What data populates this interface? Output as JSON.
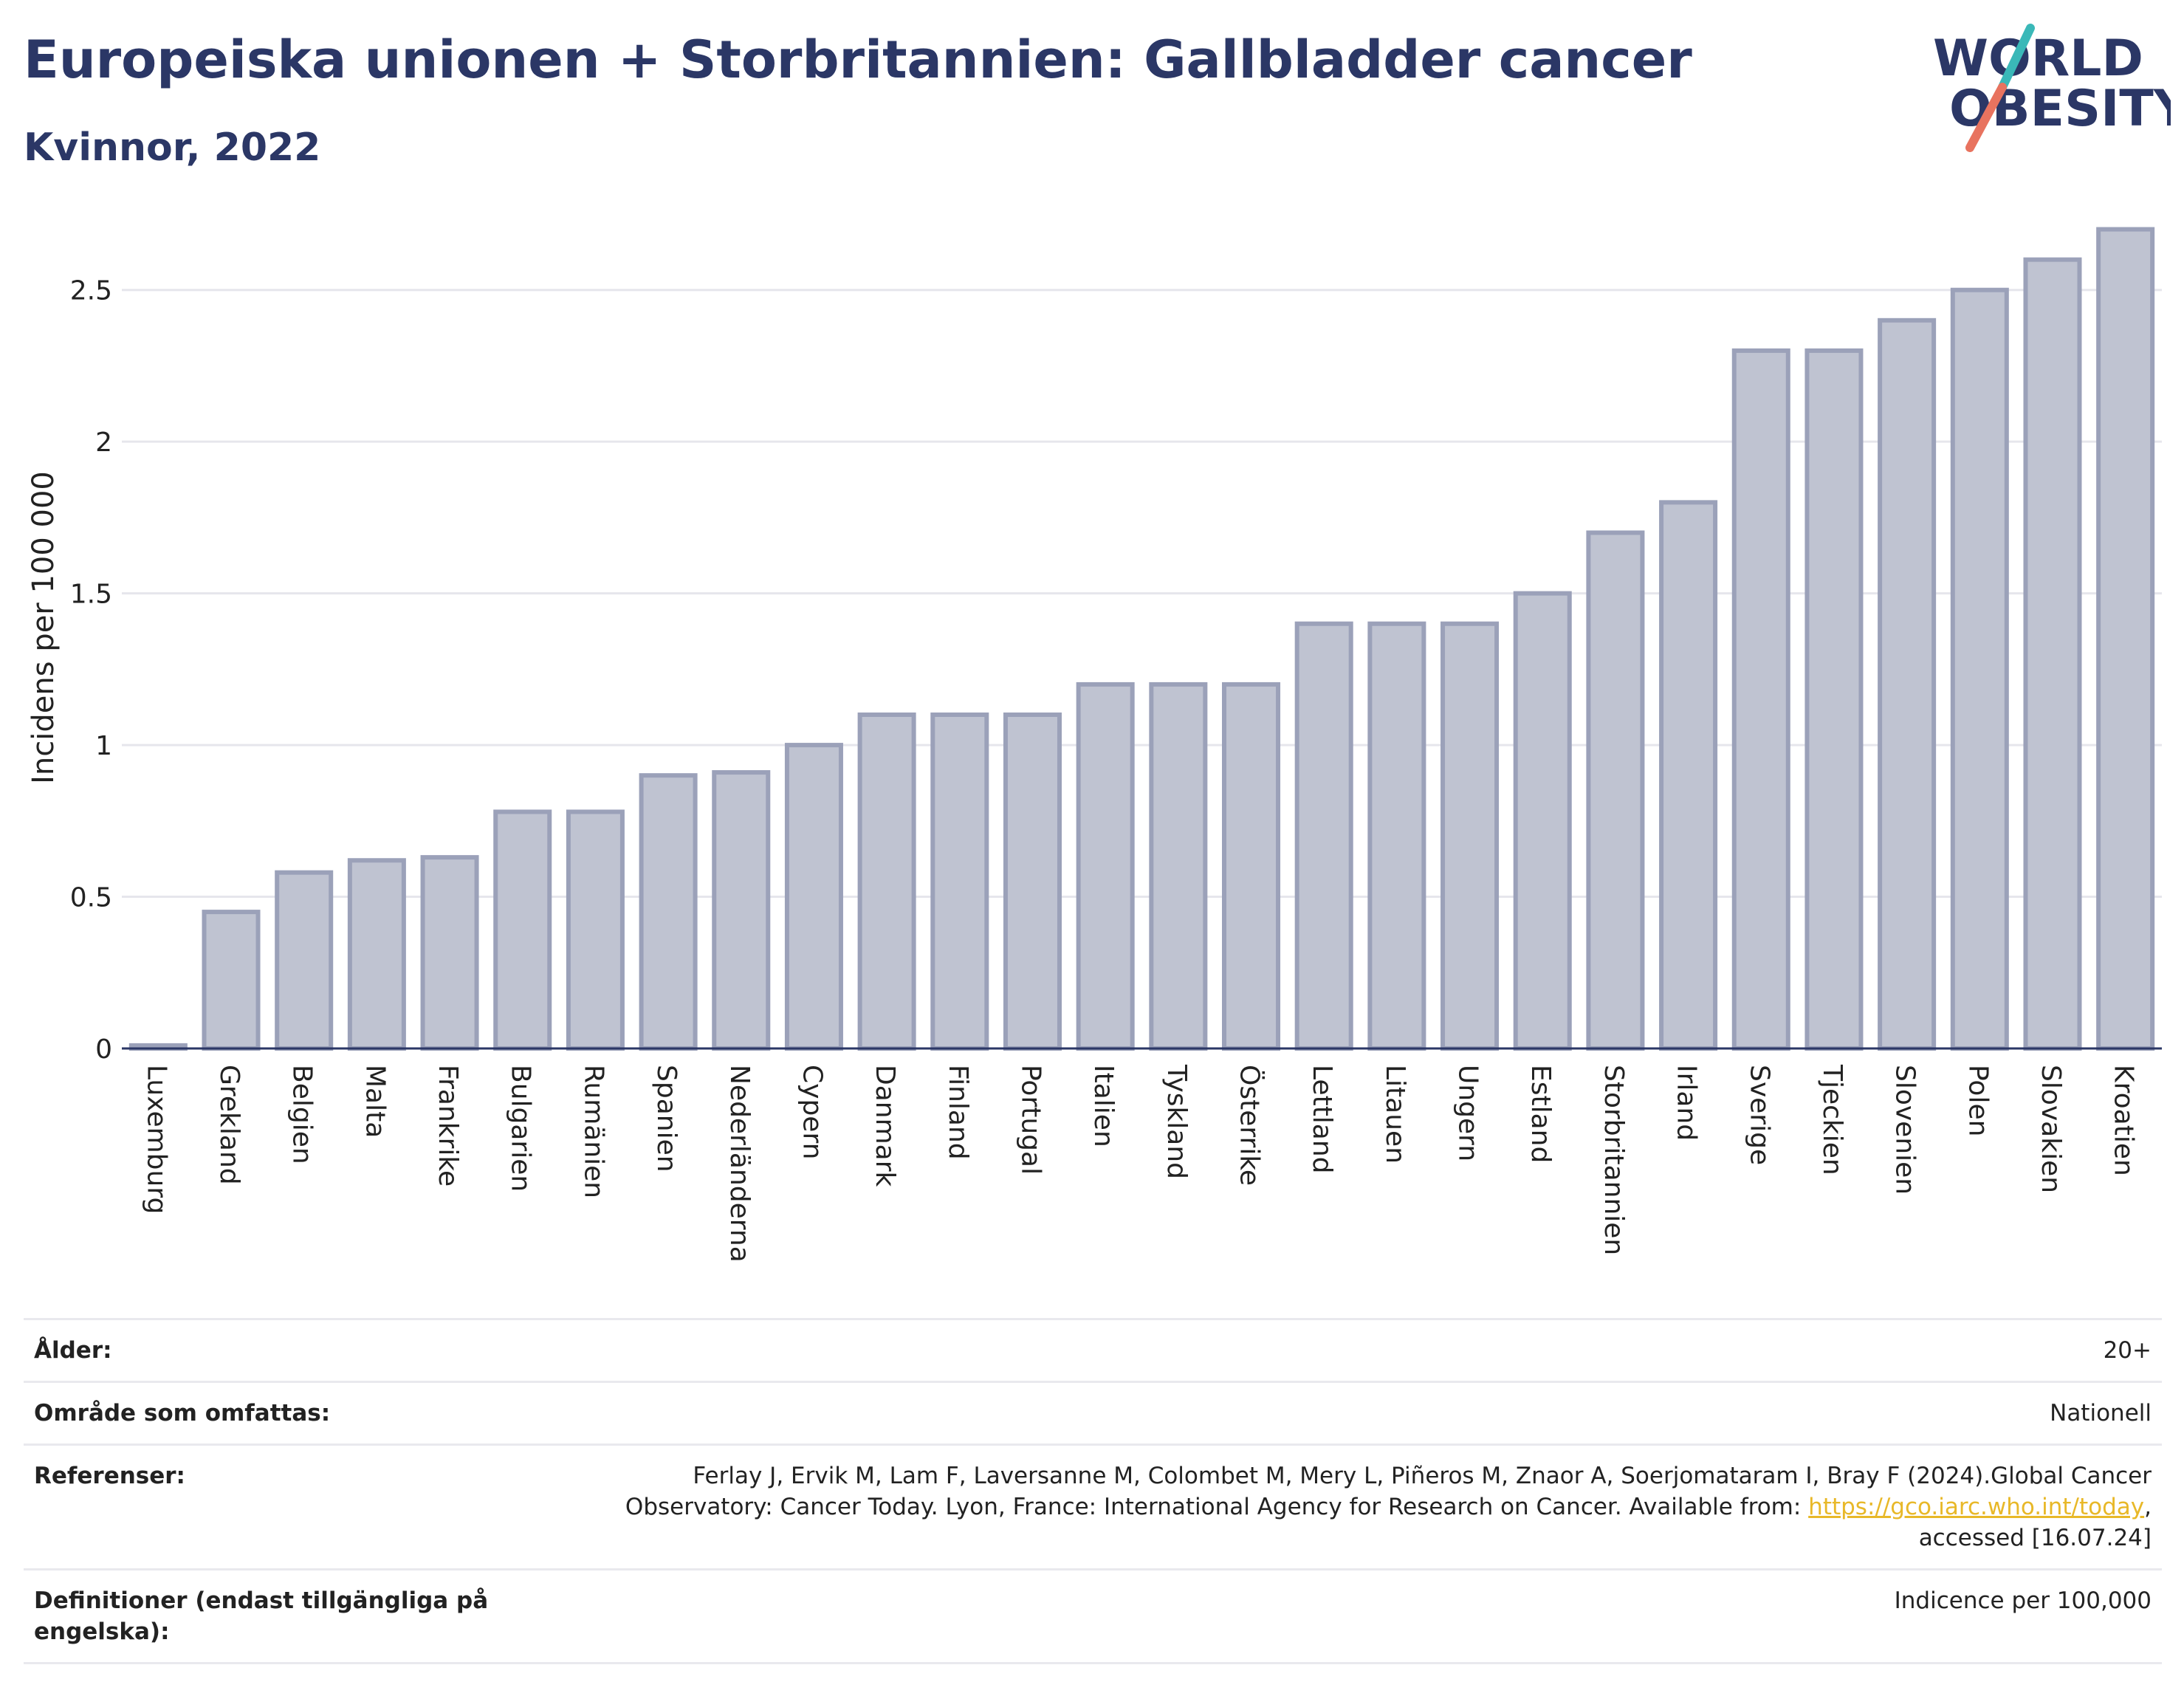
{
  "header": {
    "title": "Europeiska unionen + Storbritannien: Gallbladder cancer",
    "subtitle": "Kvinnor, 2022"
  },
  "logo": {
    "line1": "WORLD",
    "line2": "OBESITY",
    "icon": "world-obesity-logo"
  },
  "colors": {
    "bar_fill": "#bfc3d1",
    "bar_stroke": "#9ba1b9",
    "title": "#2b3766",
    "grid": "#e6e6ec",
    "link": "#e8b828",
    "logo_teal": "#3ab8b8",
    "logo_coral": "#e8735f"
  },
  "chart_data": {
    "type": "bar",
    "ylabel": "Incidens per 100 000",
    "ylim": [
      0,
      2.75
    ],
    "yticks": [
      0,
      0.5,
      1,
      1.5,
      2,
      2.5
    ],
    "ytick_labels": [
      "0",
      "0.5",
      "1",
      "1.5",
      "2",
      "2.5"
    ],
    "grid": true,
    "categories": [
      "Luxemburg",
      "Grekland",
      "Belgien",
      "Malta",
      "Frankrike",
      "Bulgarien",
      "Rumänien",
      "Spanien",
      "Nederländerna",
      "Cypern",
      "Danmark",
      "Finland",
      "Portugal",
      "Italien",
      "Tyskland",
      "Österrike",
      "Lettland",
      "Litauen",
      "Ungern",
      "Estland",
      "Storbritannien",
      "Irland",
      "Sverige",
      "Tjeckien",
      "Slovenien",
      "Polen",
      "Slovakien",
      "Kroatien"
    ],
    "values": [
      0.01,
      0.45,
      0.58,
      0.62,
      0.63,
      0.78,
      0.78,
      0.9,
      0.91,
      1.0,
      1.1,
      1.1,
      1.1,
      1.2,
      1.2,
      1.2,
      1.4,
      1.4,
      1.4,
      1.5,
      1.7,
      1.8,
      2.3,
      2.3,
      2.4,
      2.5,
      2.6,
      2.7
    ]
  },
  "info": {
    "age_label": "Ålder:",
    "age_value": "20+",
    "area_label": "Område som omfattas:",
    "area_value": "Nationell",
    "ref_label": "Referenser:",
    "ref_text_1": "Ferlay J, Ervik M, Lam F, Laversanne M, Colombet M, Mery L, Piñeros M, Znaor A, Soerjomataram I, Bray F (2024).Global Cancer Observatory: Cancer Today. Lyon, France: International Agency for Research on Cancer. Available from: ",
    "ref_link": "https://gco.iarc.who.int/today",
    "ref_text_2": ", accessed [16.07.24]",
    "def_label": "Definitioner (endast tillgängliga på engelska):",
    "def_value": "Indicence per 100,000"
  }
}
